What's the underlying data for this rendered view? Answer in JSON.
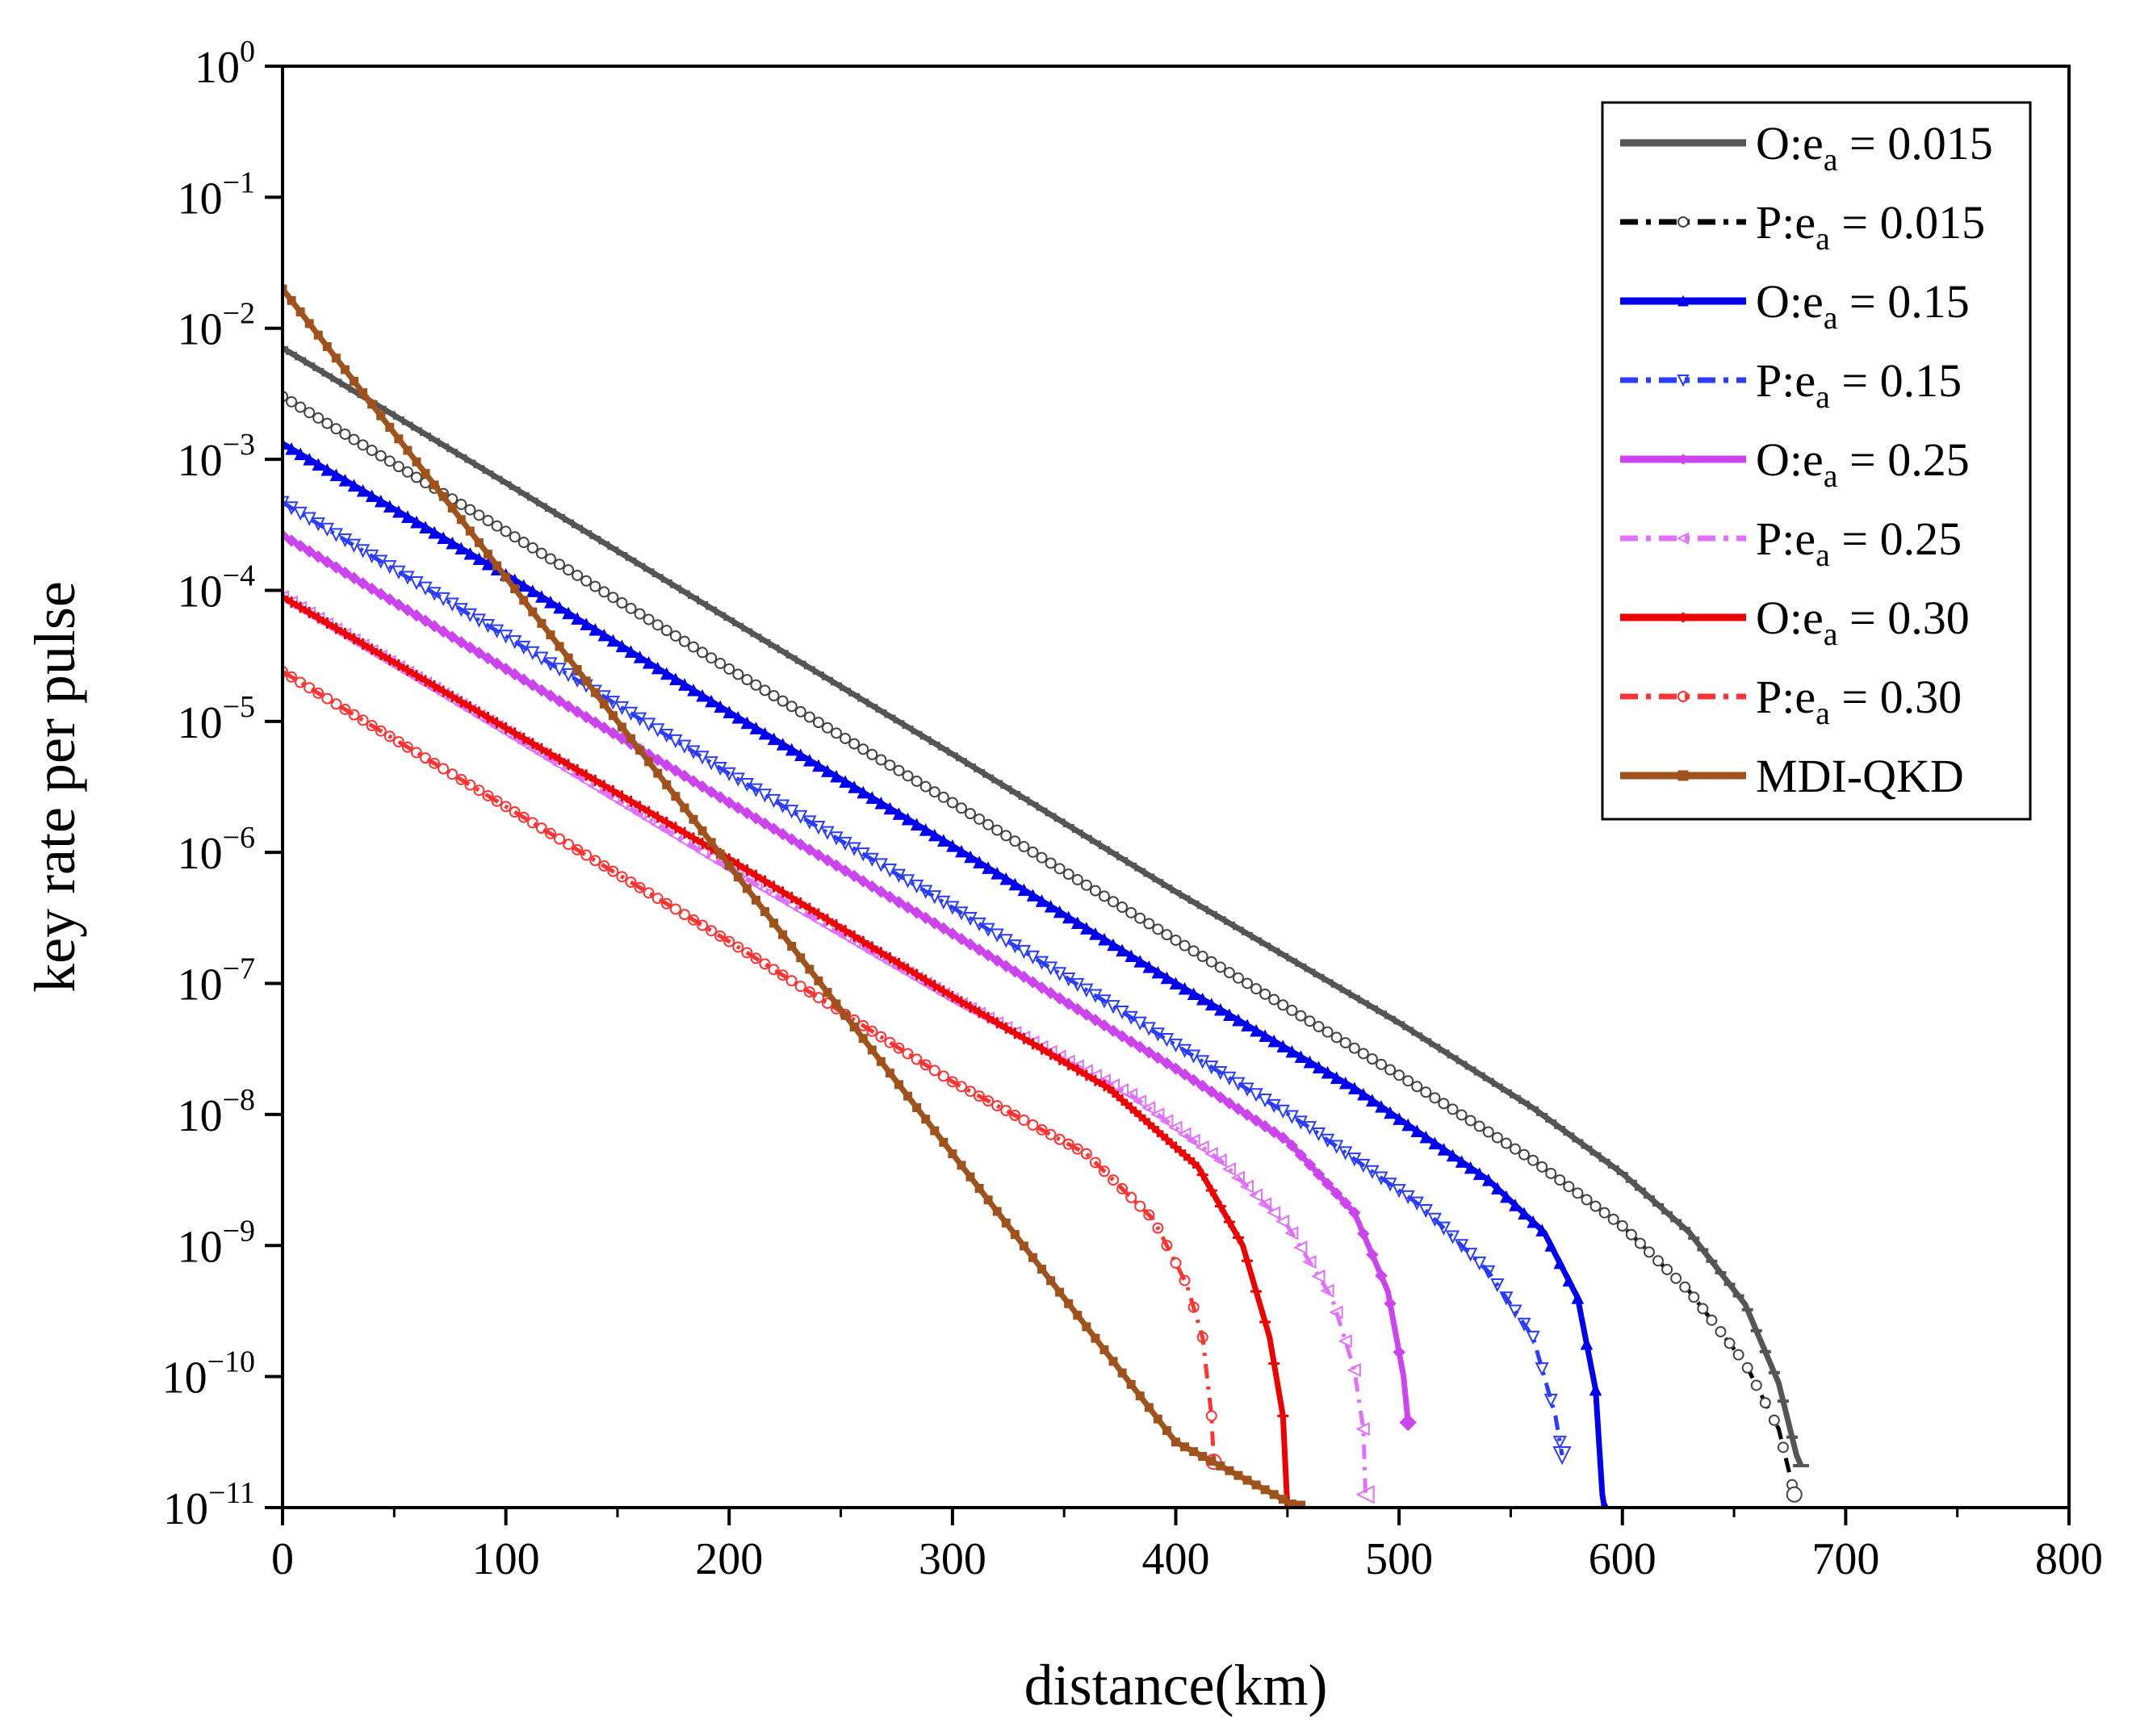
{
  "chart_data": {
    "type": "line",
    "title": "",
    "xlabel": "distance(km)",
    "ylabel": "key rate per pulse",
    "xlim": [
      0,
      800
    ],
    "ylim_log10": [
      -11,
      0
    ],
    "xticks": [
      0,
      100,
      200,
      300,
      400,
      500,
      600,
      700,
      800
    ],
    "xtick_labels": [
      "0",
      "100",
      "200",
      "300",
      "400",
      "500",
      "600",
      "700",
      "800"
    ],
    "ytick_exponents": [
      0,
      -1,
      -2,
      -3,
      -4,
      -5,
      -6,
      -7,
      -8,
      -9,
      -10,
      -11
    ],
    "ytick_base": "10",
    "ytick_exponent_labels": [
      "0",
      "−1",
      "−2",
      "−3",
      "−4",
      "−5",
      "−6",
      "−7",
      "−8",
      "−9",
      "−10",
      "−11"
    ],
    "legend_position": "top-right",
    "series": [
      {
        "name": "O:e_a = 0.015",
        "label_prefix": "O:e",
        "label_sub": "a",
        "label_suffix": " = 0.015",
        "color": "#555555",
        "style": "solid",
        "marker": "dash",
        "points": [
          [
            0,
            -2.15
          ],
          [
            100,
            -3.18
          ],
          [
            200,
            -4.22
          ],
          [
            300,
            -5.25
          ],
          [
            400,
            -6.3
          ],
          [
            500,
            -7.3
          ],
          [
            560,
            -7.95
          ],
          [
            600,
            -8.45
          ],
          [
            630,
            -8.9
          ],
          [
            655,
            -9.45
          ],
          [
            670,
            -10.05
          ],
          [
            678,
            -10.6
          ],
          [
            680,
            -10.68
          ]
        ]
      },
      {
        "name": "P:e_a = 0.015",
        "label_prefix": "P:e",
        "label_sub": "a",
        "label_suffix": " = 0.015",
        "color": "#000000",
        "style": "dashdot",
        "marker": "circle",
        "points": [
          [
            0,
            -2.52
          ],
          [
            100,
            -3.55
          ],
          [
            200,
            -4.6
          ],
          [
            300,
            -5.62
          ],
          [
            400,
            -6.67
          ],
          [
            500,
            -7.7
          ],
          [
            560,
            -8.35
          ],
          [
            600,
            -8.85
          ],
          [
            630,
            -9.35
          ],
          [
            655,
            -9.9
          ],
          [
            670,
            -10.4
          ],
          [
            675,
            -10.75
          ],
          [
            677,
            -10.9
          ]
        ]
      },
      {
        "name": "O:e_a = 0.15",
        "label_prefix": "O:e",
        "label_sub": "a",
        "label_suffix": " = 0.15",
        "color": "#0000ee",
        "style": "solid",
        "marker": "triangle-up",
        "points": [
          [
            0,
            -2.88
          ],
          [
            100,
            -3.88
          ],
          [
            200,
            -4.93
          ],
          [
            300,
            -5.95
          ],
          [
            400,
            -7.0
          ],
          [
            480,
            -7.8
          ],
          [
            540,
            -8.5
          ],
          [
            565,
            -8.9
          ],
          [
            580,
            -9.4
          ],
          [
            588,
            -10.1
          ],
          [
            591,
            -10.9
          ],
          [
            592,
            -11.0
          ]
        ]
      },
      {
        "name": "P:e_a = 0.15",
        "label_prefix": "P:e",
        "label_sub": "a",
        "label_suffix": " = 0.15",
        "color": "#2a3cff",
        "style": "dashdot",
        "marker": "triangle-down",
        "points": [
          [
            0,
            -3.33
          ],
          [
            100,
            -4.35
          ],
          [
            200,
            -5.4
          ],
          [
            300,
            -6.42
          ],
          [
            400,
            -7.47
          ],
          [
            460,
            -8.1
          ],
          [
            510,
            -8.7
          ],
          [
            540,
            -9.2
          ],
          [
            560,
            -9.7
          ],
          [
            570,
            -10.3
          ],
          [
            573,
            -10.6
          ]
        ]
      },
      {
        "name": "O:e_a = 0.25",
        "label_prefix": "O:e",
        "label_sub": "a",
        "label_suffix": " = 0.25",
        "color": "#cc44ee",
        "style": "solid",
        "marker": "diamond",
        "points": [
          [
            0,
            -3.58
          ],
          [
            100,
            -4.6
          ],
          [
            200,
            -5.62
          ],
          [
            300,
            -6.62
          ],
          [
            400,
            -7.65
          ],
          [
            450,
            -8.2
          ],
          [
            480,
            -8.75
          ],
          [
            495,
            -9.35
          ],
          [
            502,
            -10.0
          ],
          [
            504,
            -10.35
          ]
        ]
      },
      {
        "name": "P:e_a = 0.25",
        "label_prefix": "P:e",
        "label_sub": "a",
        "label_suffix": " = 0.25",
        "color": "#e070ff",
        "style": "dashdot",
        "marker": "triangle-left",
        "points": [
          [
            0,
            -4.05
          ],
          [
            100,
            -5.08
          ],
          [
            200,
            -6.12
          ],
          [
            300,
            -7.12
          ],
          [
            380,
            -7.85
          ],
          [
            420,
            -8.35
          ],
          [
            450,
            -8.85
          ],
          [
            470,
            -9.4
          ],
          [
            480,
            -9.95
          ],
          [
            484,
            -10.4
          ],
          [
            485,
            -10.9
          ]
        ]
      },
      {
        "name": "O:e_a = 0.30",
        "label_prefix": "O:e",
        "label_sub": "a",
        "label_suffix": " = 0.30",
        "color": "#ee0000",
        "style": "solid",
        "marker": "plus",
        "points": [
          [
            0,
            -4.05
          ],
          [
            100,
            -5.05
          ],
          [
            200,
            -6.05
          ],
          [
            300,
            -7.1
          ],
          [
            370,
            -7.8
          ],
          [
            410,
            -8.4
          ],
          [
            430,
            -9.0
          ],
          [
            442,
            -9.7
          ],
          [
            448,
            -10.3
          ],
          [
            450,
            -11.0
          ]
        ]
      },
      {
        "name": "P:e_a = 0.30",
        "label_prefix": "P:e",
        "label_sub": "a",
        "label_suffix": " = 0.30",
        "color": "#ff3333",
        "style": "dashdot",
        "marker": "hexagon",
        "points": [
          [
            0,
            -4.62
          ],
          [
            100,
            -5.65
          ],
          [
            200,
            -6.68
          ],
          [
            300,
            -7.75
          ],
          [
            360,
            -8.3
          ],
          [
            390,
            -8.8
          ],
          [
            405,
            -9.3
          ],
          [
            412,
            -9.7
          ],
          [
            416,
            -10.3
          ],
          [
            417,
            -10.65
          ]
        ]
      },
      {
        "name": "MDI-QKD",
        "label_prefix": "MDI-QKD",
        "label_sub": "",
        "label_suffix": "",
        "color": "#a0521c",
        "style": "solid",
        "marker": "square",
        "points": [
          [
            0,
            -1.7
          ],
          [
            100,
            -3.9
          ],
          [
            200,
            -6.1
          ],
          [
            300,
            -8.3
          ],
          [
            400,
            -10.5
          ],
          [
            455,
            -11.0
          ]
        ]
      }
    ]
  }
}
